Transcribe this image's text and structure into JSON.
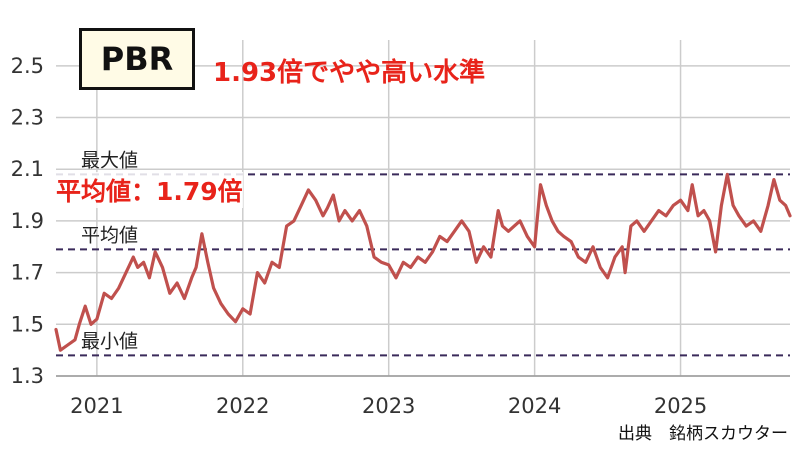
{
  "badge": {
    "label": "PBR"
  },
  "headline": "1.93倍でやや高い水準",
  "callout": "平均値：1.79倍",
  "source": "出典　銘柄スカウター",
  "colors": {
    "line": "#c0504d",
    "ref_line": "#3a2a5a",
    "grid": "#cccccc",
    "headline": "#e8231a"
  },
  "chart_data": {
    "type": "line",
    "title": "",
    "xlabel": "",
    "ylabel": "",
    "ylim": [
      1.3,
      2.6
    ],
    "yticks": [
      "1.3",
      "1.5",
      "1.7",
      "1.9",
      "2.1",
      "2.3",
      "2.5"
    ],
    "xlim": [
      2020.72,
      2025.75
    ],
    "xticks": [
      {
        "value": 2021,
        "label": "2021"
      },
      {
        "value": 2022,
        "label": "2022"
      },
      {
        "value": 2023,
        "label": "2023"
      },
      {
        "value": 2024,
        "label": "2024"
      },
      {
        "value": 2025,
        "label": "2025"
      }
    ],
    "grid": true,
    "reference_lines": [
      {
        "label": "最大値",
        "value": 2.08
      },
      {
        "label": "平均値",
        "value": 1.79
      },
      {
        "label": "最小値",
        "value": 1.38
      }
    ],
    "series": [
      {
        "name": "",
        "points": [
          [
            2020.72,
            1.48
          ],
          [
            2020.75,
            1.4
          ],
          [
            2020.8,
            1.42
          ],
          [
            2020.85,
            1.44
          ],
          [
            2020.88,
            1.5
          ],
          [
            2020.92,
            1.57
          ],
          [
            2020.96,
            1.5
          ],
          [
            2021.0,
            1.52
          ],
          [
            2021.05,
            1.62
          ],
          [
            2021.1,
            1.6
          ],
          [
            2021.15,
            1.64
          ],
          [
            2021.2,
            1.7
          ],
          [
            2021.25,
            1.76
          ],
          [
            2021.28,
            1.72
          ],
          [
            2021.32,
            1.74
          ],
          [
            2021.36,
            1.68
          ],
          [
            2021.4,
            1.78
          ],
          [
            2021.45,
            1.72
          ],
          [
            2021.5,
            1.62
          ],
          [
            2021.55,
            1.66
          ],
          [
            2021.6,
            1.6
          ],
          [
            2021.65,
            1.68
          ],
          [
            2021.68,
            1.72
          ],
          [
            2021.72,
            1.85
          ],
          [
            2021.76,
            1.74
          ],
          [
            2021.8,
            1.64
          ],
          [
            2021.85,
            1.58
          ],
          [
            2021.9,
            1.54
          ],
          [
            2021.95,
            1.51
          ],
          [
            2022.0,
            1.56
          ],
          [
            2022.05,
            1.54
          ],
          [
            2022.1,
            1.7
          ],
          [
            2022.15,
            1.66
          ],
          [
            2022.2,
            1.74
          ],
          [
            2022.25,
            1.72
          ],
          [
            2022.3,
            1.88
          ],
          [
            2022.35,
            1.9
          ],
          [
            2022.4,
            1.96
          ],
          [
            2022.45,
            2.02
          ],
          [
            2022.5,
            1.98
          ],
          [
            2022.55,
            1.92
          ],
          [
            2022.58,
            1.95
          ],
          [
            2022.62,
            2.0
          ],
          [
            2022.66,
            1.9
          ],
          [
            2022.7,
            1.94
          ],
          [
            2022.75,
            1.9
          ],
          [
            2022.8,
            1.94
          ],
          [
            2022.85,
            1.88
          ],
          [
            2022.9,
            1.76
          ],
          [
            2022.95,
            1.74
          ],
          [
            2023.0,
            1.73
          ],
          [
            2023.05,
            1.68
          ],
          [
            2023.1,
            1.74
          ],
          [
            2023.15,
            1.72
          ],
          [
            2023.2,
            1.76
          ],
          [
            2023.25,
            1.74
          ],
          [
            2023.3,
            1.78
          ],
          [
            2023.35,
            1.84
          ],
          [
            2023.4,
            1.82
          ],
          [
            2023.45,
            1.86
          ],
          [
            2023.5,
            1.9
          ],
          [
            2023.55,
            1.86
          ],
          [
            2023.6,
            1.74
          ],
          [
            2023.65,
            1.8
          ],
          [
            2023.7,
            1.76
          ],
          [
            2023.75,
            1.94
          ],
          [
            2023.78,
            1.88
          ],
          [
            2023.82,
            1.86
          ],
          [
            2023.86,
            1.88
          ],
          [
            2023.9,
            1.9
          ],
          [
            2023.95,
            1.84
          ],
          [
            2024.0,
            1.8
          ],
          [
            2024.04,
            2.04
          ],
          [
            2024.08,
            1.96
          ],
          [
            2024.12,
            1.9
          ],
          [
            2024.16,
            1.86
          ],
          [
            2024.2,
            1.84
          ],
          [
            2024.25,
            1.82
          ],
          [
            2024.3,
            1.76
          ],
          [
            2024.35,
            1.74
          ],
          [
            2024.4,
            1.8
          ],
          [
            2024.45,
            1.72
          ],
          [
            2024.5,
            1.68
          ],
          [
            2024.55,
            1.76
          ],
          [
            2024.6,
            1.8
          ],
          [
            2024.62,
            1.7
          ],
          [
            2024.66,
            1.88
          ],
          [
            2024.7,
            1.9
          ],
          [
            2024.75,
            1.86
          ],
          [
            2024.8,
            1.9
          ],
          [
            2024.85,
            1.94
          ],
          [
            2024.9,
            1.92
          ],
          [
            2024.95,
            1.96
          ],
          [
            2025.0,
            1.98
          ],
          [
            2025.05,
            1.94
          ],
          [
            2025.08,
            2.04
          ],
          [
            2025.12,
            1.92
          ],
          [
            2025.16,
            1.94
          ],
          [
            2025.2,
            1.9
          ],
          [
            2025.24,
            1.78
          ],
          [
            2025.28,
            1.96
          ],
          [
            2025.32,
            2.08
          ],
          [
            2025.36,
            1.96
          ],
          [
            2025.4,
            1.92
          ],
          [
            2025.45,
            1.88
          ],
          [
            2025.5,
            1.9
          ],
          [
            2025.55,
            1.86
          ],
          [
            2025.6,
            1.96
          ],
          [
            2025.64,
            2.06
          ],
          [
            2025.68,
            1.98
          ],
          [
            2025.72,
            1.96
          ],
          [
            2025.75,
            1.92
          ]
        ]
      }
    ]
  }
}
